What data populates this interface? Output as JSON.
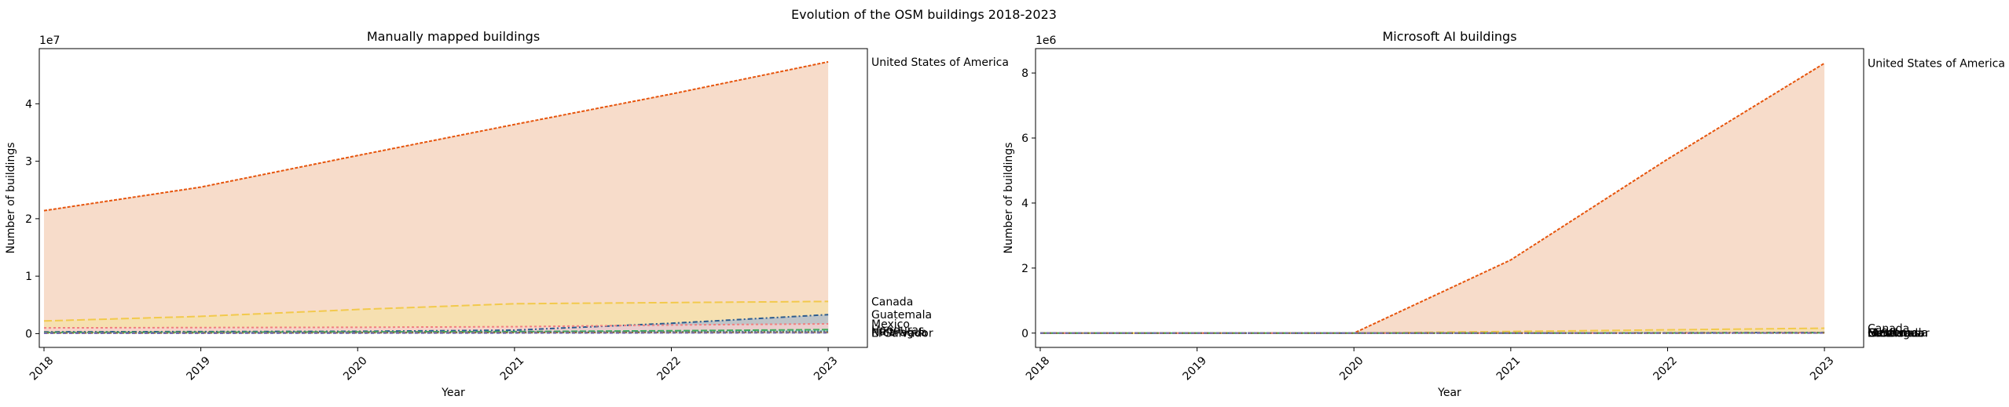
{
  "suptitle": "Evolution of the OSM buildings 2018-2023",
  "chart_data": [
    {
      "type": "area",
      "title": "Manually mapped buildings",
      "xlabel": "Year",
      "ylabel": "Number of buildings",
      "offset_label": "1e7",
      "x": [
        2018,
        2019,
        2020,
        2021,
        2022,
        2023
      ],
      "xlim": [
        2017.97,
        2023.25
      ],
      "ylim": [
        -2400000,
        49600000
      ],
      "yticks": [
        0,
        10000000,
        20000000,
        30000000,
        40000000
      ],
      "ytick_labels": [
        "0",
        "1",
        "2",
        "3",
        "4"
      ],
      "grid": false,
      "series": [
        {
          "name": "United States of America",
          "color": "#e6550d",
          "fill": "#f4d0b8",
          "values": [
            21400000,
            25500000,
            31000000,
            36400000,
            41700000,
            47300000
          ]
        },
        {
          "name": "Canada",
          "color": "#f2c94c",
          "fill": "#f5e2a8",
          "values": [
            2200000,
            3000000,
            4200000,
            5200000,
            5400000,
            5600000
          ]
        },
        {
          "name": "Guatemala",
          "color": "#2c5c8f",
          "fill": "#aebcd0",
          "values": [
            300000,
            350000,
            400000,
            600000,
            1800000,
            3300000
          ]
        },
        {
          "name": "Mexico",
          "color": "#f08080",
          "fill": "#f8d0d0",
          "values": [
            1000000,
            1050000,
            1100000,
            1200000,
            1500000,
            1700000
          ]
        },
        {
          "name": "Honduras",
          "color": "#41ab5d",
          "fill": "#c7e6cf",
          "values": [
            200000,
            250000,
            300000,
            350000,
            500000,
            700000
          ]
        },
        {
          "name": "Haiti",
          "color": "#3182bd",
          "fill": "#c6dbef",
          "values": [
            150000,
            180000,
            200000,
            250000,
            300000,
            400000
          ]
        },
        {
          "name": "Nicaragua",
          "color": "#8c6d31",
          "fill": "#e0d4bc",
          "values": [
            100000,
            120000,
            150000,
            180000,
            220000,
            250000
          ]
        },
        {
          "name": "El Salvador",
          "color": "#756bb1",
          "fill": "#dadaeb",
          "values": [
            50000,
            60000,
            80000,
            100000,
            120000,
            150000
          ]
        }
      ]
    },
    {
      "type": "area",
      "title": "Microsoft AI buildings",
      "xlabel": "Year",
      "ylabel": "Number of buildings",
      "offset_label": "1e6",
      "x": [
        2018,
        2019,
        2020,
        2021,
        2022,
        2023
      ],
      "xlim": [
        2017.97,
        2023.25
      ],
      "ylim": [
        -440000,
        8750000
      ],
      "yticks": [
        0,
        2000000,
        4000000,
        6000000,
        8000000
      ],
      "ytick_labels": [
        "0",
        "2",
        "4",
        "6",
        "8"
      ],
      "grid": false,
      "series": [
        {
          "name": "United States of America",
          "color": "#e6550d",
          "fill": "#f4d0b8",
          "values": [
            0,
            0,
            0,
            2250000,
            5350000,
            8300000
          ]
        },
        {
          "name": "Canada",
          "color": "#f2c94c",
          "fill": "#f5e2a8",
          "values": [
            0,
            0,
            0,
            50000,
            100000,
            150000
          ]
        },
        {
          "name": "Guatemala",
          "color": "#2c5c8f",
          "fill": "#aebcd0",
          "values": [
            0,
            0,
            0,
            0,
            10000,
            20000
          ]
        },
        {
          "name": "Mexico",
          "color": "#f08080",
          "fill": "#f8d0d0",
          "values": [
            0,
            0,
            0,
            0,
            5000,
            15000
          ]
        },
        {
          "name": "Honduras",
          "color": "#41ab5d",
          "fill": "#c7e6cf",
          "values": [
            0,
            0,
            0,
            0,
            3000,
            10000
          ]
        },
        {
          "name": "Haiti",
          "color": "#3182bd",
          "fill": "#c6dbef",
          "values": [
            0,
            0,
            0,
            0,
            2000,
            8000
          ]
        },
        {
          "name": "Nicaragua",
          "color": "#8c6d31",
          "fill": "#e0d4bc",
          "values": [
            0,
            0,
            0,
            0,
            1000,
            5000
          ]
        },
        {
          "name": "El Salvador",
          "color": "#756bb1",
          "fill": "#dadaeb",
          "values": [
            0,
            0,
            0,
            0,
            1000,
            3000
          ]
        }
      ]
    }
  ]
}
